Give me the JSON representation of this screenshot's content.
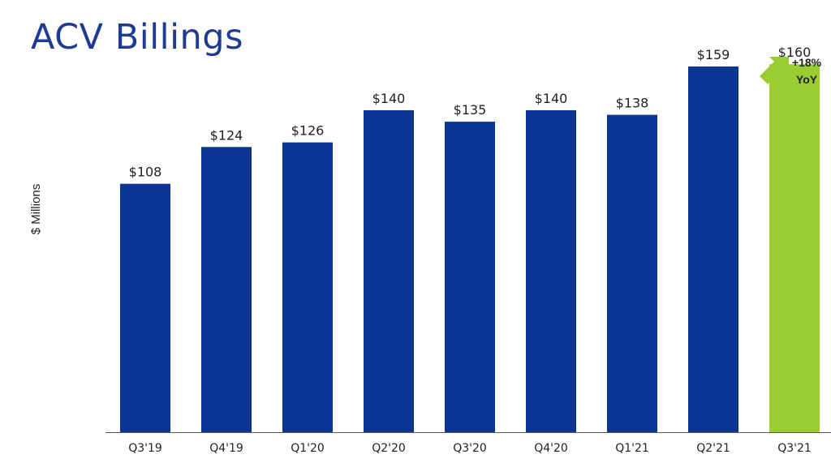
{
  "title": "ACV Billings",
  "chart_data": {
    "type": "bar",
    "title": "ACV Billings",
    "ylabel": "$ Millions",
    "xlabel": "",
    "categories": [
      "Q3'19",
      "Q4'19",
      "Q1'20",
      "Q2'20",
      "Q3'20",
      "Q4'20",
      "Q1'21",
      "Q2'21",
      "Q3'21"
    ],
    "values": [
      108,
      124,
      126,
      140,
      135,
      140,
      138,
      159,
      160
    ],
    "value_labels": [
      "$108",
      "$124",
      "$126",
      "$140",
      "$135",
      "$140",
      "$138",
      "$159",
      "$160"
    ],
    "highlight_index": 8,
    "ylim": [
      0,
      165
    ],
    "grid": false,
    "legend": "none",
    "annotation": {
      "line1": "+18%",
      "line2": "YoY"
    }
  },
  "colors": {
    "bar": "#0b3593",
    "highlight": "#9acd32",
    "title": "#1f3a93",
    "axis": "#555555"
  }
}
